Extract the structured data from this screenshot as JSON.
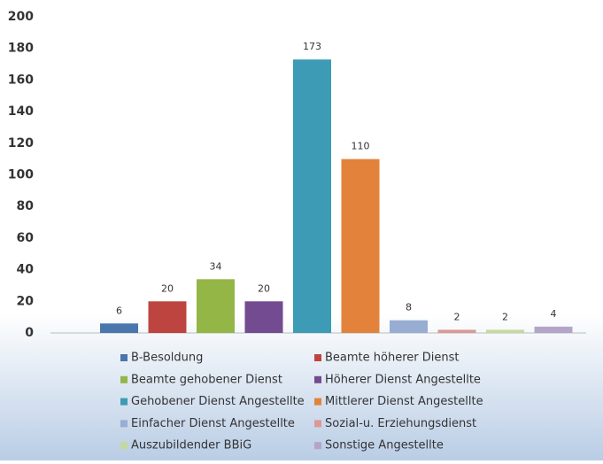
{
  "chart_data": {
    "type": "bar",
    "series": [
      {
        "name": "B-Besoldung",
        "color": "#4a76ae",
        "values": [
          6
        ]
      },
      {
        "name": "Beamte höherer Dienst",
        "color": "#be4440",
        "values": [
          20
        ]
      },
      {
        "name": "Beamte gehobener Dienst",
        "color": "#93b647",
        "values": [
          34
        ]
      },
      {
        "name": "Höherer Dienst Angestellte",
        "color": "#734b91",
        "values": [
          20
        ]
      },
      {
        "name": "Gehobener Dienst Angestellte",
        "color": "#3d9bb5",
        "values": [
          173
        ]
      },
      {
        "name": "Mittlerer Dienst Angestellte",
        "color": "#e3823a",
        "values": [
          110
        ]
      },
      {
        "name": "Einfacher Dienst Angestellte",
        "color": "#97add2",
        "values": [
          8
        ]
      },
      {
        "name": "Sozial-u. Erziehungsdienst",
        "color": "#dc9897",
        "values": [
          2
        ]
      },
      {
        "name": "Auszubildender BBiG",
        "color": "#c5d99e",
        "values": [
          2
        ]
      },
      {
        "name": "Sonstige Angestellte",
        "color": "#b5a4c9",
        "values": [
          4
        ]
      }
    ],
    "ylim": [
      0,
      200
    ],
    "yticks": [
      0,
      20,
      40,
      60,
      80,
      100,
      120,
      140,
      160,
      180,
      200
    ],
    "grid": false,
    "legend": "bottom"
  }
}
